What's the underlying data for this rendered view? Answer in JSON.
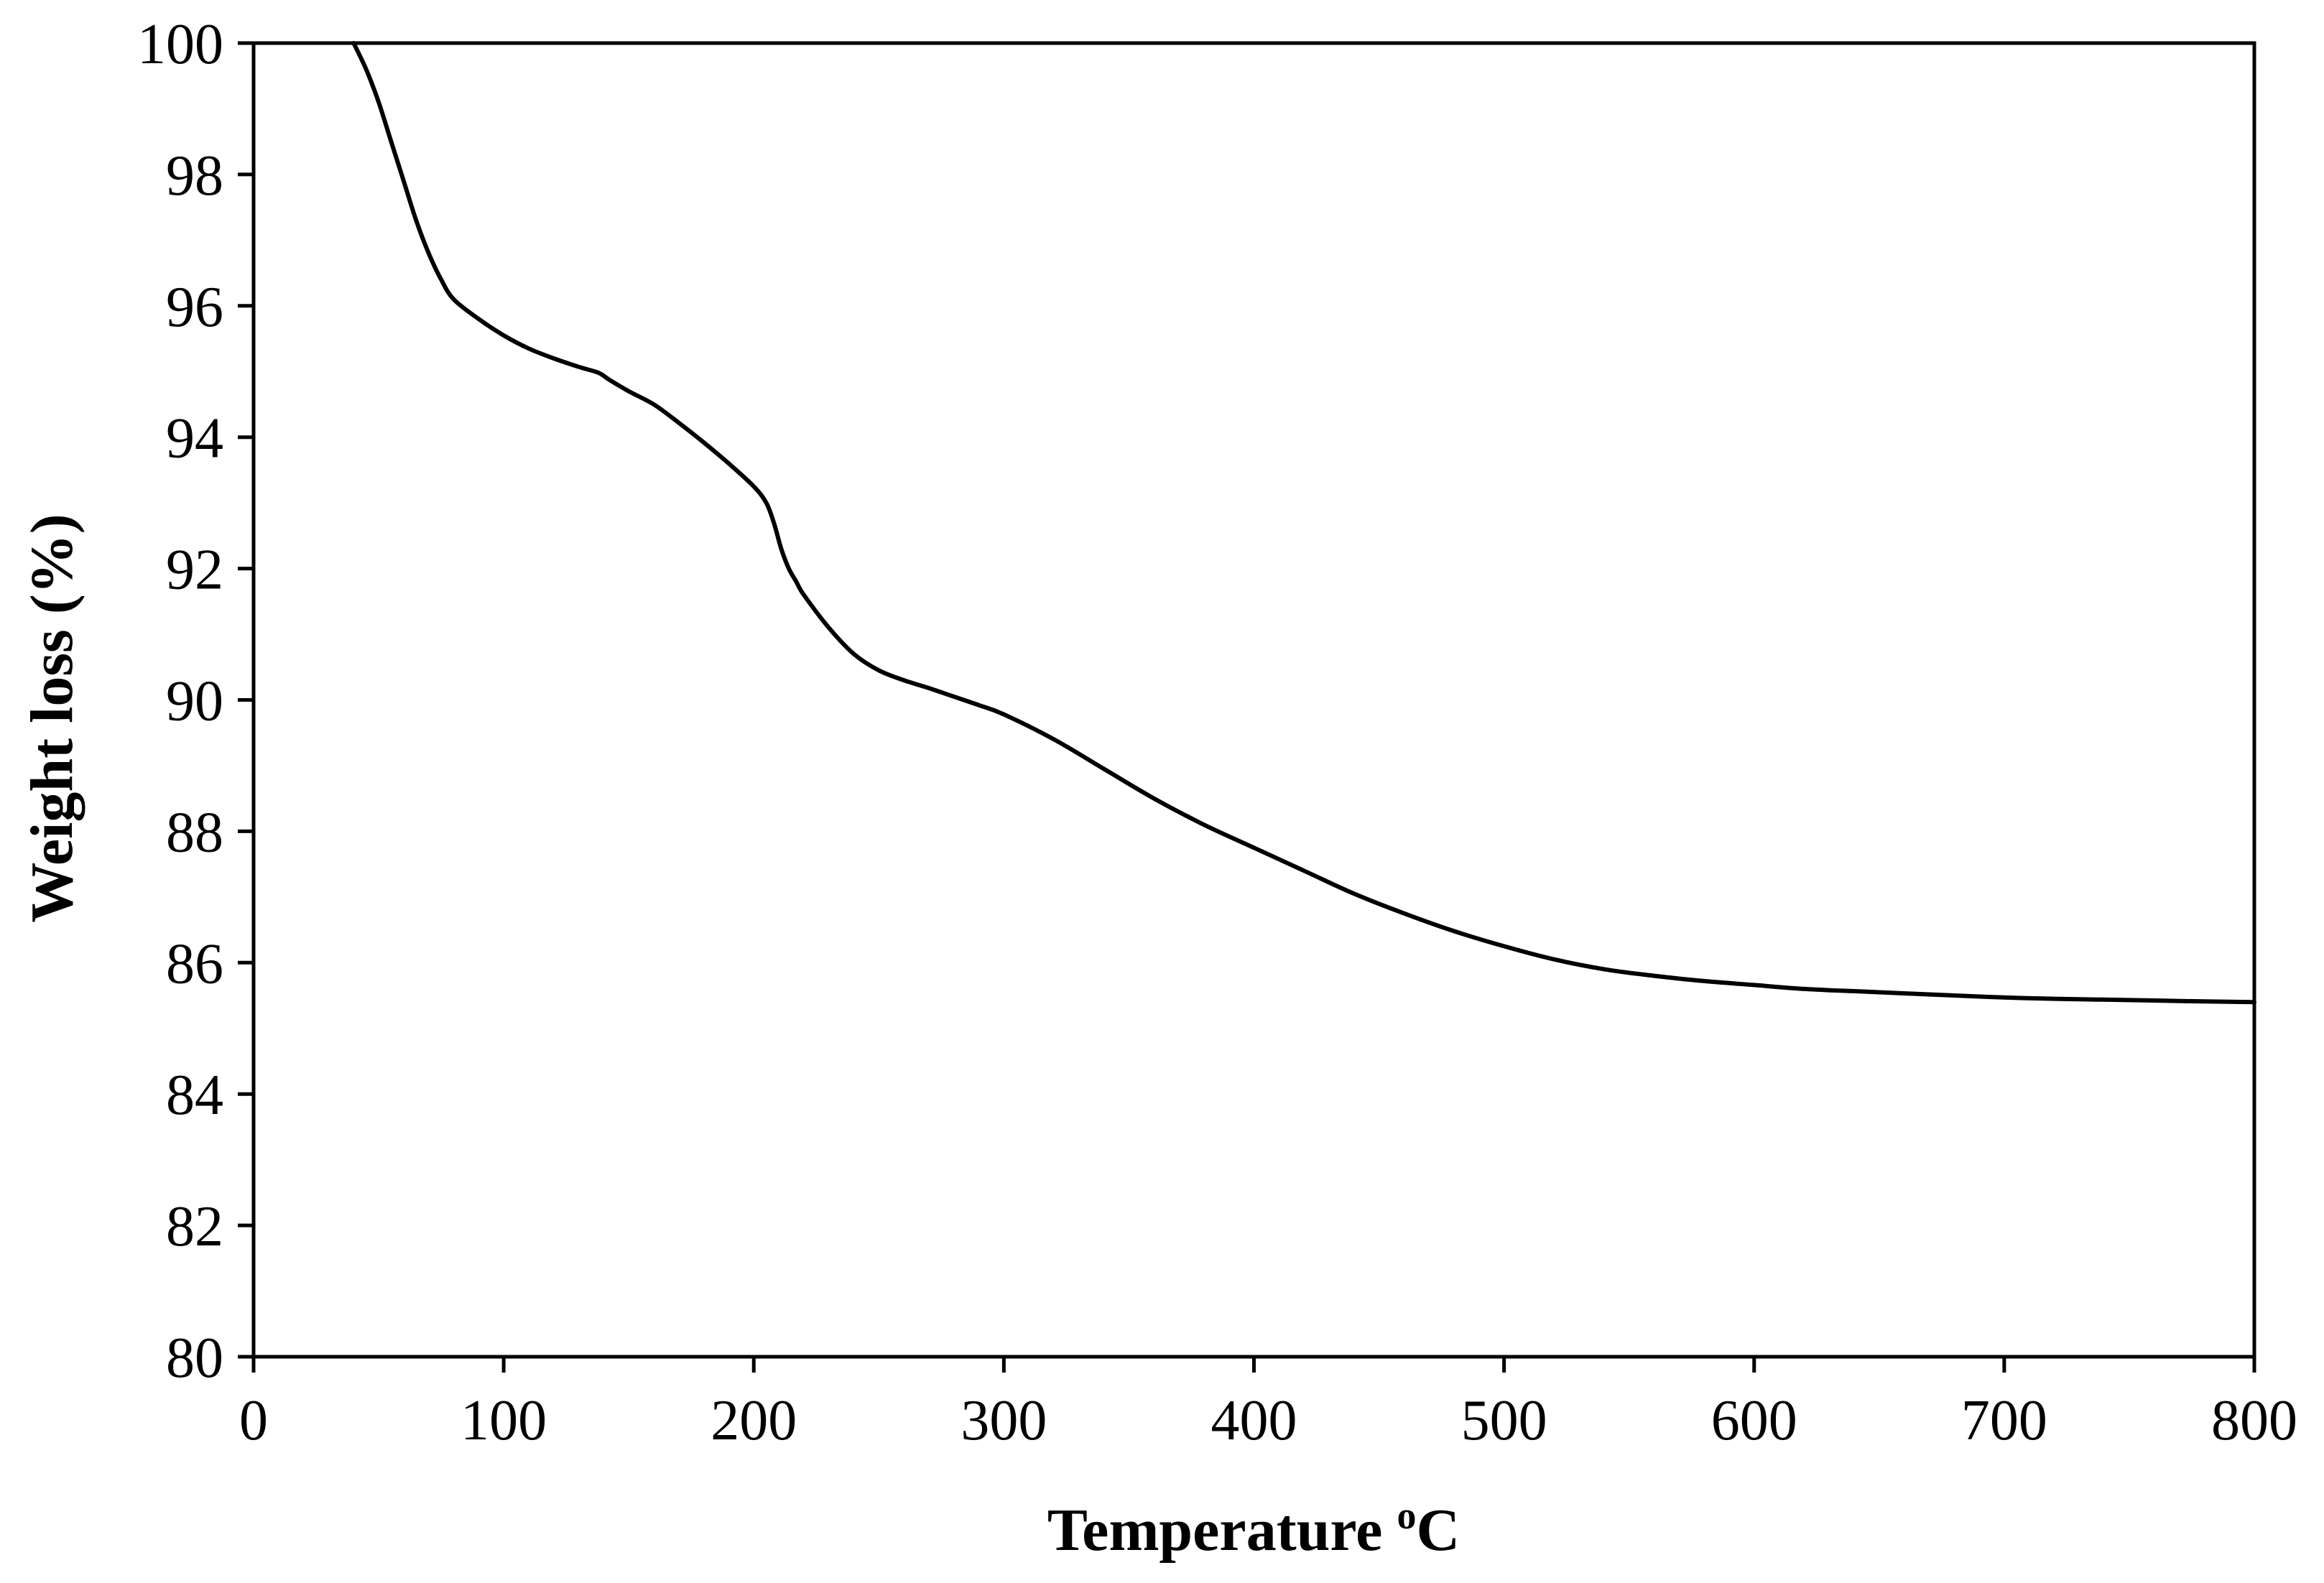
{
  "chart_data": {
    "type": "line",
    "xlabel": "Temperature",
    "xlabel_unit_sup": "o",
    "xlabel_unit": "C",
    "ylabel": "Weight loss (%)",
    "xlim": [
      0,
      800
    ],
    "ylim": [
      80,
      100
    ],
    "x_ticks": [
      0,
      100,
      200,
      300,
      400,
      500,
      600,
      700,
      800
    ],
    "y_ticks": [
      80,
      82,
      84,
      86,
      88,
      90,
      92,
      94,
      96,
      98,
      100
    ],
    "grid": false,
    "legend": "none",
    "line_color": "#000000",
    "series": [
      {
        "x": [
          40,
          45,
          50,
          55,
          60,
          65,
          70,
          75,
          80,
          90,
          100,
          110,
          120,
          130,
          138,
          142,
          150,
          160,
          170,
          180,
          190,
          200,
          205,
          208,
          211,
          214,
          217,
          220,
          230,
          240,
          250,
          260,
          270,
          280,
          290,
          300,
          320,
          340,
          360,
          380,
          400,
          420,
          440,
          460,
          480,
          500,
          520,
          540,
          560,
          580,
          600,
          620,
          650,
          680,
          700,
          720,
          750,
          780,
          800
        ],
        "y": [
          100.0,
          99.6,
          99.1,
          98.5,
          97.9,
          97.3,
          96.8,
          96.4,
          96.1,
          95.8,
          95.55,
          95.35,
          95.2,
          95.07,
          94.98,
          94.88,
          94.7,
          94.5,
          94.22,
          93.92,
          93.6,
          93.25,
          93.0,
          92.7,
          92.3,
          92.0,
          91.8,
          91.6,
          91.1,
          90.7,
          90.45,
          90.3,
          90.18,
          90.05,
          89.92,
          89.78,
          89.4,
          88.95,
          88.5,
          88.1,
          87.75,
          87.4,
          87.05,
          86.75,
          86.48,
          86.25,
          86.05,
          85.9,
          85.8,
          85.72,
          85.66,
          85.6,
          85.55,
          85.5,
          85.47,
          85.45,
          85.43,
          85.41,
          85.4
        ]
      }
    ]
  }
}
